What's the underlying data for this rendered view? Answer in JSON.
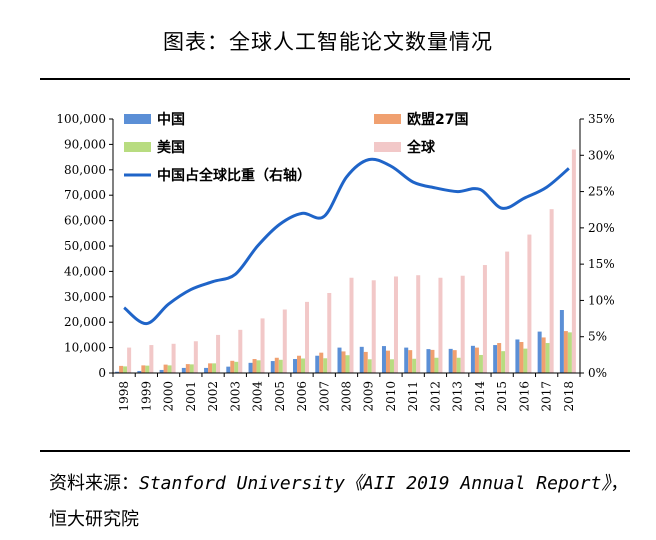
{
  "page": {
    "title": "图表：全球人工智能论文数量情况",
    "source_prefix": "资料来源：",
    "source_ref": "Stanford University《AII 2019 Annual Report》",
    "source_suffix": "，恒大研究院"
  },
  "chart_data": {
    "type": "bar",
    "categories": [
      "1998",
      "1999",
      "2000",
      "2001",
      "2002",
      "2003",
      "2004",
      "2005",
      "2006",
      "2007",
      "2008",
      "2009",
      "2010",
      "2011",
      "2012",
      "2013",
      "2014",
      "2015",
      "2016",
      "2017",
      "2018"
    ],
    "series": [
      {
        "name": "中国",
        "color": "#5b8fd6",
        "values": [
          500,
          800,
          1200,
          2000,
          2000,
          2500,
          4000,
          4700,
          5500,
          6800,
          10000,
          10300,
          10600,
          10000,
          9400,
          9500,
          10700,
          11000,
          13200,
          16300,
          24800
        ]
      },
      {
        "name": "欧盟27国",
        "color": "#f0a070",
        "values": [
          2800,
          3000,
          3300,
          3500,
          3800,
          4800,
          5500,
          6000,
          6800,
          8000,
          8500,
          8300,
          8800,
          9000,
          9100,
          9000,
          10000,
          11800,
          12200,
          14000,
          16500
        ]
      },
      {
        "name": "美国",
        "color": "#b8dc80",
        "values": [
          2600,
          2900,
          3000,
          3400,
          3800,
          4400,
          5000,
          5200,
          5700,
          5800,
          7000,
          5400,
          5400,
          5600,
          6000,
          6000,
          7100,
          8600,
          9600,
          11800,
          16000
        ]
      },
      {
        "name": "全球",
        "color": "#f2c8c8",
        "values": [
          10000,
          11000,
          11500,
          12500,
          15000,
          17000,
          21500,
          25000,
          28000,
          31500,
          37500,
          36500,
          38000,
          38500,
          37500,
          38300,
          42500,
          47800,
          54500,
          64500,
          88000
        ]
      }
    ],
    "line": {
      "name": "中国占全球比重（右轴）",
      "color": "#1f64c8",
      "values": [
        9.0,
        6.8,
        9.5,
        11.5,
        12.6,
        13.6,
        17.5,
        20.5,
        22.0,
        21.6,
        27.0,
        29.4,
        28.5,
        26.3,
        25.5,
        25.0,
        25.3,
        22.7,
        24.1,
        25.6,
        28.2
      ]
    },
    "ylim": [
      0,
      100000
    ],
    "y_ticks": [
      "0",
      "10,000",
      "20,000",
      "30,000",
      "40,000",
      "50,000",
      "60,000",
      "70,000",
      "80,000",
      "90,000",
      "100,000"
    ],
    "y2lim": [
      0,
      35
    ],
    "y2_ticks": [
      "0%",
      "5%",
      "10%",
      "15%",
      "20%",
      "25%",
      "30%",
      "35%"
    ],
    "legend": [
      "中国",
      "欧盟27国",
      "美国",
      "全球",
      "中国占全球比重（右轴）"
    ]
  }
}
